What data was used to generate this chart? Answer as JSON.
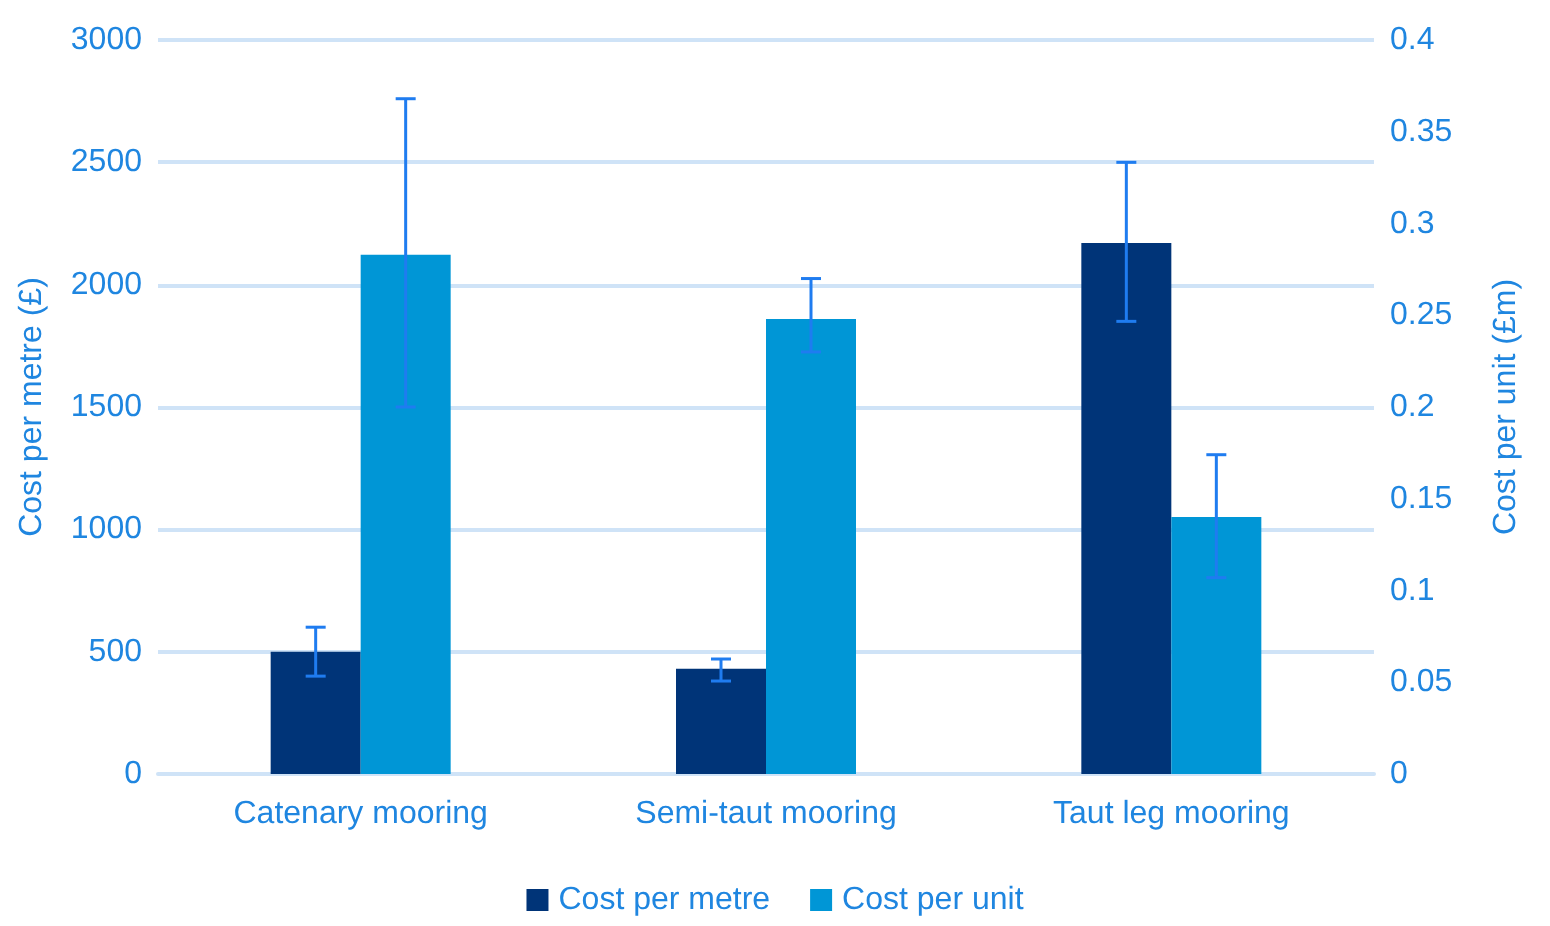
{
  "chart_data": {
    "type": "bar",
    "categories": [
      "Catenary mooring",
      "Semi-taut mooring",
      "Taut leg mooring"
    ],
    "ylabel": "Cost per metre (£)",
    "y2label": "Cost per unit (£m)",
    "ylim": [
      0,
      3000
    ],
    "yticks": [
      0,
      500,
      1000,
      1500,
      2000,
      2500,
      3000
    ],
    "y2lim": [
      0,
      0.4
    ],
    "y2ticks": [
      0,
      0.05,
      0.1,
      0.15,
      0.2,
      0.25,
      0.3,
      0.35,
      0.4
    ],
    "series": [
      {
        "name": "Cost per metre",
        "color": "#003478",
        "values": [
          500,
          430,
          2170
        ],
        "errors": [
          [
            400,
            600
          ],
          [
            380,
            470
          ],
          [
            1850,
            2500
          ]
        ]
      },
      {
        "name": "Cost per unit",
        "color": "#0096d6",
        "axis": "y2",
        "values": [
          0.283,
          0.248,
          0.14
        ],
        "errors": [
          [
            0.2,
            0.368
          ],
          [
            0.23,
            0.27
          ],
          [
            0.107,
            0.174
          ]
        ]
      }
    ],
    "grid": "y",
    "legend": "bottom"
  }
}
